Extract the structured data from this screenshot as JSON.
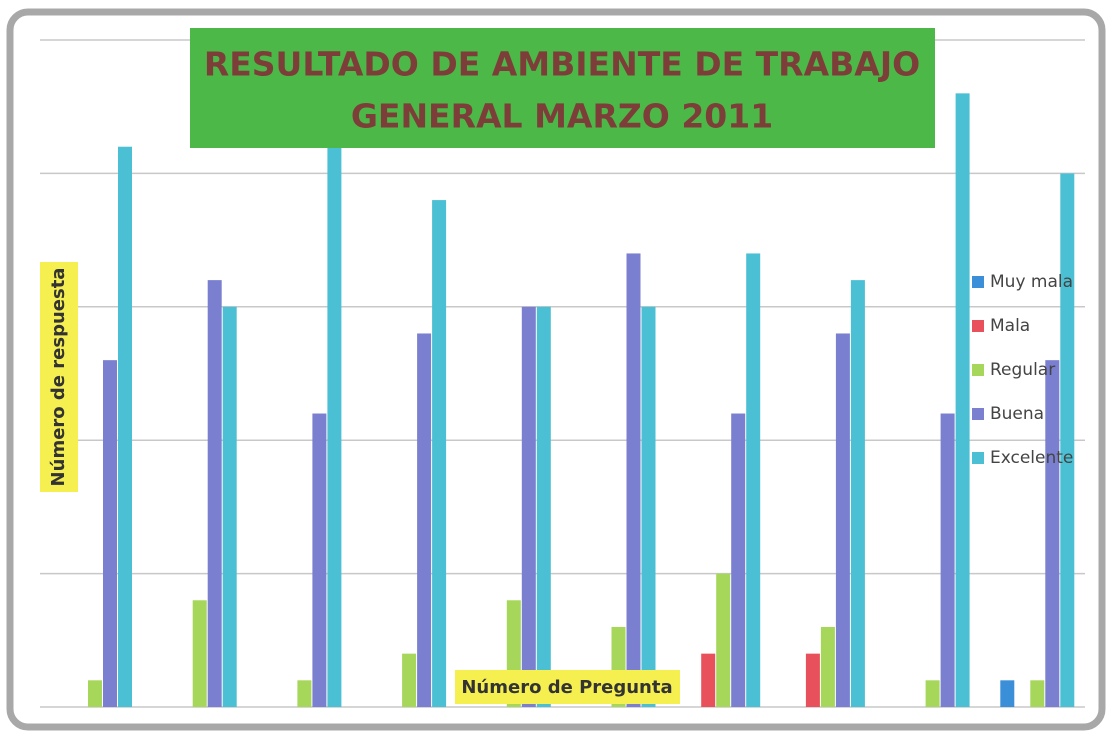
{
  "chart_data": {
    "type": "bar",
    "title": "RESULTADO DE AMBIENTE DE TRABAJO GENERAL  MARZO 2011",
    "y_label": "Número de respuesta",
    "x_label": "Número de Pregunta",
    "categories": [
      null,
      null,
      null,
      null,
      null,
      null,
      null,
      null,
      null,
      null
    ],
    "series": [
      {
        "name": "Muy mala",
        "color": "#3b8fd8",
        "values": [
          0,
          0,
          0,
          0,
          0,
          0,
          0,
          0,
          0,
          1
        ]
      },
      {
        "name": "Mala",
        "color": "#e8505b",
        "values": [
          0,
          0,
          0,
          0,
          0,
          0,
          2,
          2,
          0,
          0
        ]
      },
      {
        "name": "Regular",
        "color": "#a6d65a",
        "values": [
          1,
          4,
          1,
          2,
          4,
          3,
          5,
          3,
          1,
          1
        ]
      },
      {
        "name": "Buena",
        "color": "#7b7fcf",
        "values": [
          13,
          16,
          11,
          14,
          15,
          17,
          11,
          14,
          11,
          13
        ]
      },
      {
        "name": "Excelente",
        "color": "#4bc0d4",
        "values": [
          21,
          15,
          21,
          19,
          15,
          15,
          17,
          16,
          23,
          20
        ]
      }
    ],
    "ylim": [
      0,
      25
    ],
    "yticks": [
      0,
      5,
      10,
      15,
      20,
      25
    ],
    "grid": true,
    "legend": "right"
  }
}
